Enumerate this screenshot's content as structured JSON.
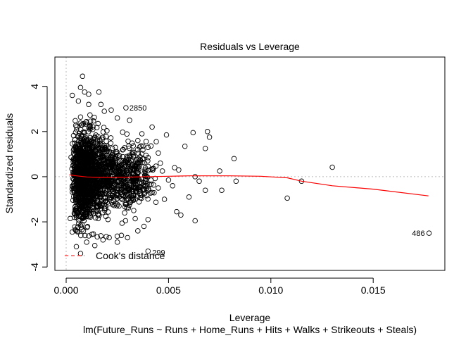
{
  "chart_data": {
    "type": "scatter",
    "title": "Residuals vs Leverage",
    "xlabel": "Leverage",
    "ylabel": "Standardized residuals",
    "subtitle": "lm(Future_Runs ~ Runs + Home_Runs + Hits + Walks + Strikeouts + Steals)",
    "xlim": [
      -0.00055,
      0.0185
    ],
    "ylim": [
      -4.15,
      5.3
    ],
    "x_ticks": [
      0.0,
      0.005,
      0.01,
      0.015
    ],
    "x_tick_labels": [
      "0.000",
      "0.005",
      "0.010",
      "0.015"
    ],
    "y_ticks": [
      -4,
      -2,
      0,
      2,
      4
    ],
    "y_tick_labels": [
      "-4",
      "-2",
      "0",
      "2",
      "4"
    ],
    "grid": false,
    "legend": {
      "position": "bottom-left",
      "entries": [
        {
          "label": "Cook's distance",
          "color": "#ff0000",
          "style": "dashed"
        }
      ]
    },
    "reference_line_y": 0,
    "reference_line_x": 0,
    "smooth_curve": {
      "color": "#ff0000",
      "x": [
        0.00015,
        0.0005,
        0.001,
        0.0015,
        0.002,
        0.003,
        0.004,
        0.005,
        0.006,
        0.008,
        0.0095,
        0.0108,
        0.0115,
        0.013,
        0.015,
        0.0177
      ],
      "y": [
        0.08,
        0.04,
        -0.01,
        -0.03,
        -0.03,
        -0.02,
        0.0,
        0.02,
        0.04,
        0.04,
        0.02,
        -0.05,
        -0.2,
        -0.4,
        -0.55,
        -0.85
      ]
    },
    "labeled_points": [
      {
        "label": "2850",
        "x": 0.00292,
        "y": 3.05
      },
      {
        "label": "299",
        "x": 0.004,
        "y": -3.3
      },
      {
        "label": "486",
        "x": 0.01773,
        "y": -2.5
      }
    ],
    "outlier_points": [
      {
        "x": 0.0003,
        "y": 3.6
      },
      {
        "x": 0.0008,
        "y": 4.45
      },
      {
        "x": 0.0007,
        "y": 3.95
      },
      {
        "x": 0.0009,
        "y": 3.75
      },
      {
        "x": 0.0011,
        "y": 3.65
      },
      {
        "x": 0.0016,
        "y": 3.75
      },
      {
        "x": 0.0042,
        "y": 2.2
      },
      {
        "x": 0.0044,
        "y": 1.55
      },
      {
        "x": 0.0045,
        "y": 1.05
      },
      {
        "x": 0.0049,
        "y": 1.85
      },
      {
        "x": 0.0058,
        "y": 1.35
      },
      {
        "x": 0.0062,
        "y": 1.95
      },
      {
        "x": 0.0068,
        "y": 1.25
      },
      {
        "x": 0.007,
        "y": 1.75
      },
      {
        "x": 0.0069,
        "y": 2.0
      },
      {
        "x": 0.0082,
        "y": 0.8
      },
      {
        "x": 0.0075,
        "y": 0.25
      },
      {
        "x": 0.013,
        "y": 0.42
      },
      {
        "x": 0.0115,
        "y": -0.2
      },
      {
        "x": 0.0108,
        "y": -0.95
      },
      {
        "x": 0.0083,
        "y": -0.2
      },
      {
        "x": 0.0076,
        "y": -0.6
      },
      {
        "x": 0.0068,
        "y": -0.6
      },
      {
        "x": 0.0063,
        "y": -1.95
      },
      {
        "x": 0.0056,
        "y": -1.7
      },
      {
        "x": 0.0054,
        "y": -1.55
      },
      {
        "x": 0.0052,
        "y": -0.4
      },
      {
        "x": 0.006,
        "y": -0.9
      },
      {
        "x": 0.0063,
        "y": 0.0
      },
      {
        "x": 0.0065,
        "y": -0.2
      },
      {
        "x": 0.0053,
        "y": 0.4
      },
      {
        "x": 0.0055,
        "y": 0.3
      },
      {
        "x": 0.0048,
        "y": -1.0
      },
      {
        "x": 0.004,
        "y": -1.9
      },
      {
        "x": 0.0038,
        "y": -2.2
      },
      {
        "x": 0.0035,
        "y": -2.4
      },
      {
        "x": 0.003,
        "y": -2.7
      },
      {
        "x": 0.0027,
        "y": -2.6
      },
      {
        "x": 0.0025,
        "y": -2.9
      },
      {
        "x": 0.0021,
        "y": -2.7
      },
      {
        "x": 0.0014,
        "y": -3.05
      },
      {
        "x": 0.0007,
        "y": -3.4
      },
      {
        "x": 0.0005,
        "y": -3.1
      },
      {
        "x": 0.0003,
        "y": -2.45
      },
      {
        "x": 0.0002,
        "y": -1.85
      },
      {
        "x": 0.001,
        "y": -2.9
      },
      {
        "x": 0.0018,
        "y": -2.8
      },
      {
        "x": 0.0022,
        "y": 2.95
      },
      {
        "x": 0.0017,
        "y": 3.2
      },
      {
        "x": 0.0011,
        "y": 3.2
      },
      {
        "x": 0.0006,
        "y": 3.35
      },
      {
        "x": 0.0025,
        "y": 2.6
      },
      {
        "x": 0.0031,
        "y": 2.5
      },
      {
        "x": 0.0037,
        "y": 1.9
      },
      {
        "x": 0.004,
        "y": 1.3
      },
      {
        "x": 0.0036,
        "y": 0.75
      },
      {
        "x": 0.0046,
        "y": 0.6
      },
      {
        "x": 0.0047,
        "y": 0.25
      },
      {
        "x": 0.005,
        "y": -0.15
      },
      {
        "x": 0.0045,
        "y": -0.5
      },
      {
        "x": 0.0042,
        "y": -0.7
      },
      {
        "x": 0.0033,
        "y": -1.5
      },
      {
        "x": 0.0029,
        "y": -1.95
      },
      {
        "x": 0.0039,
        "y": 0.95
      },
      {
        "x": 0.0035,
        "y": 1.6
      }
    ],
    "dense_cluster": {
      "description_free_params": true,
      "points": 1900,
      "leverage_min": 0.0002,
      "leverage_mode": 0.0008,
      "residual_sd": 0.95
    }
  }
}
